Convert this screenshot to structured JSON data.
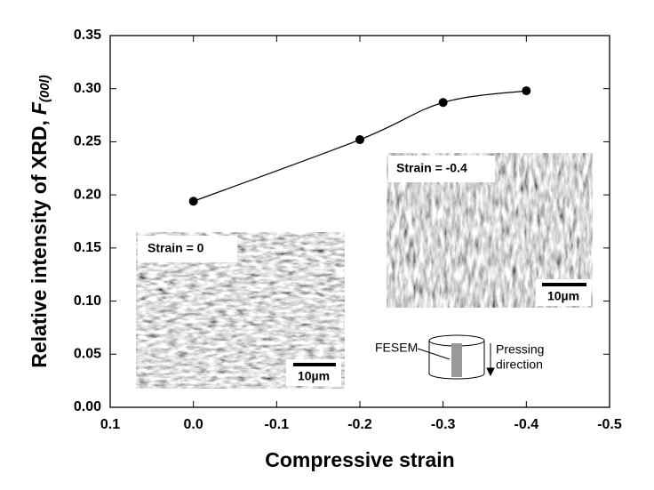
{
  "chart_data": {
    "type": "line",
    "x_label": "Compressive strain",
    "y_label": "Relative intensity of XRD,",
    "y_label_symbol": "F",
    "y_label_subscript": "(00l)",
    "x": [
      0.0,
      -0.2,
      -0.3,
      -0.4
    ],
    "series": [
      {
        "color": "#000000",
        "values": [
          0.194,
          0.252,
          0.287,
          0.298
        ]
      }
    ],
    "xlim": [
      0.1,
      -0.5
    ],
    "xticks": [
      0.1,
      {
        "value": 0,
        "label": "0.0"
      },
      -0.1,
      -0.2,
      -0.3,
      -0.4,
      -0.5
    ],
    "ylim": [
      0,
      0.35
    ],
    "yticks": [
      {
        "value": 0,
        "label": "0.00"
      },
      0.05,
      {
        "value": 0.1,
        "label": "0.10"
      },
      0.15,
      {
        "value": 0.2,
        "label": "0.20"
      },
      0.25,
      {
        "value": 0.3,
        "label": "0.30"
      },
      0.35
    ],
    "grid": false,
    "annotations": {
      "inset_left_label": "Strain = 0",
      "inset_left_scale": "10µm",
      "inset_right_label": "Strain = -0.4",
      "inset_right_scale": "10µm",
      "schematic_label": "FESEM",
      "schematic_arrow_label": [
        "Pressing",
        "direction"
      ]
    }
  }
}
